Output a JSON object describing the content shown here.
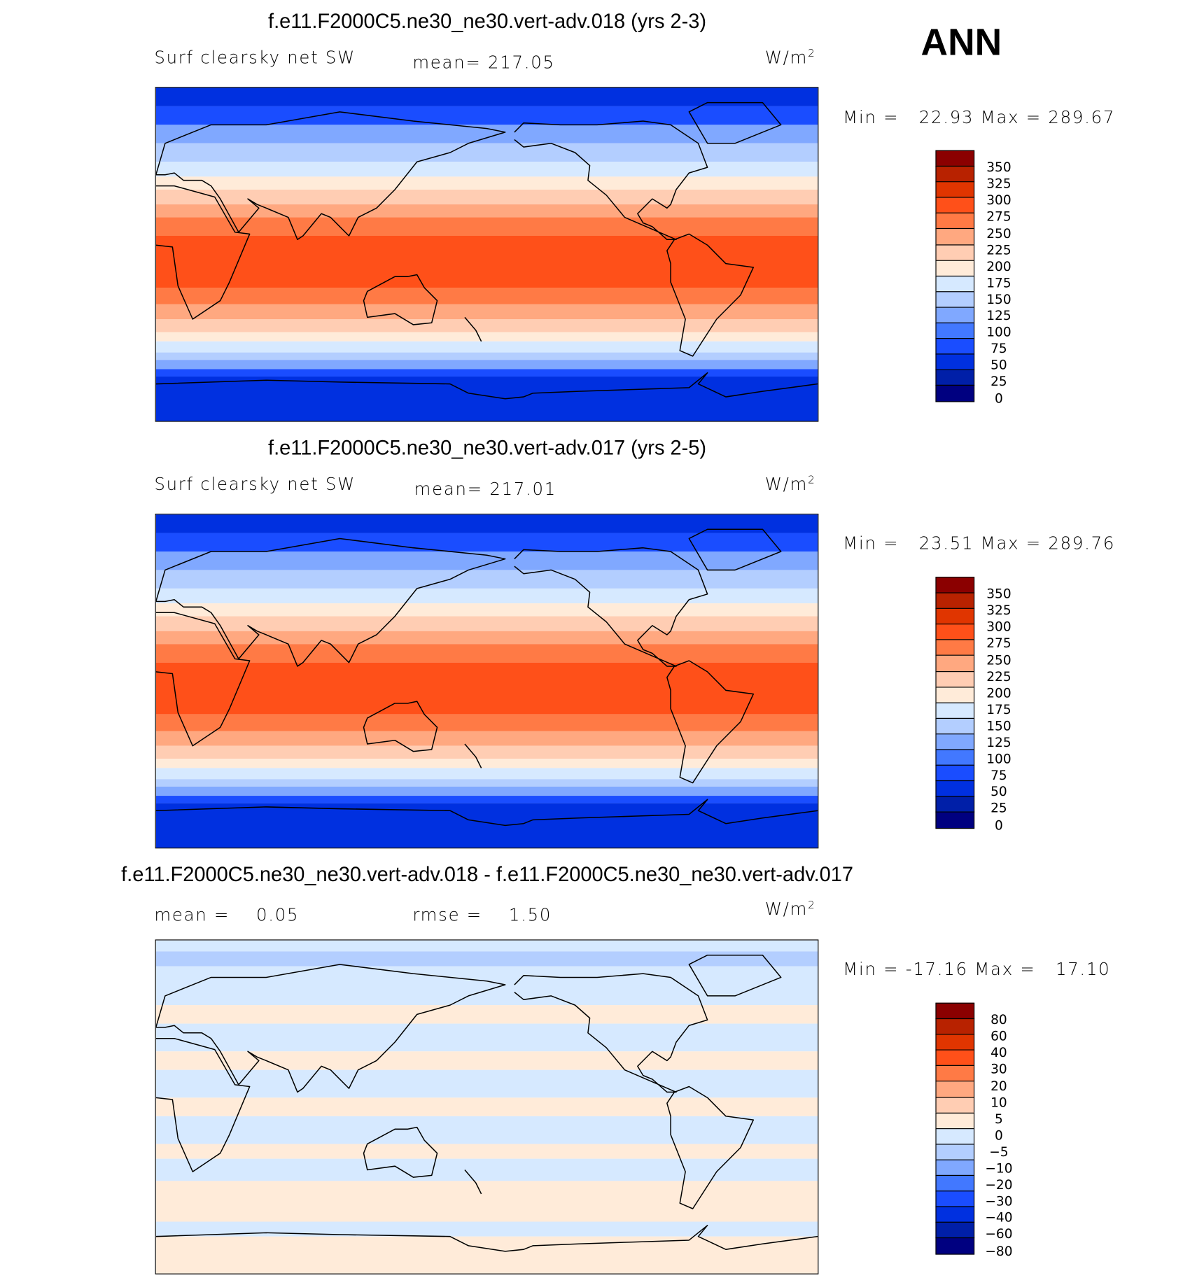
{
  "season_label": "ANN",
  "units_text": "W/m",
  "units_sup": "2",
  "colors": [
    "#000080",
    "#001fa8",
    "#0030e0",
    "#1a4dff",
    "#4278ff",
    "#80a8ff",
    "#b3ceff",
    "#d6e9ff",
    "#ffebd9",
    "#ffcdb3",
    "#ffa880",
    "#ff7a45",
    "#ff5019",
    "#e03500",
    "#b82200",
    "#8b0000"
  ],
  "coast_color": "#000000",
  "panels": [
    {
      "title": "f.e11.F2000C5.ne30_ne30.vert-adv.018 (yrs 2-3)",
      "left_label": "Surf clearsky net SW",
      "mid_label": "mean= 217.05",
      "min_label": "Min =",
      "min_value": "22.93",
      "max_label": "Max =",
      "max_value": "289.67"
    },
    {
      "title": "f.e11.F2000C5.ne30_ne30.vert-adv.017 (yrs 2-5)",
      "left_label": "Surf clearsky net SW",
      "mid_label": "mean= 217.01",
      "min_label": "Min =",
      "min_value": "23.51",
      "max_label": "Max =",
      "max_value": "289.76"
    },
    {
      "title": "f.e11.F2000C5.ne30_ne30.vert-adv.018 - f.e11.F2000C5.ne30_ne30.vert-adv.017",
      "left_label": "mean =    0.05",
      "mid_label": "rmse =    1.50",
      "min_label": "Min =",
      "min_value": "-17.16",
      "max_label": "Max =",
      "max_value": "17.10"
    }
  ],
  "chart_data": [
    {
      "type": "heatmap",
      "title": "f.e11.F2000C5.ne30_ne30.vert-adv.018 (yrs 2-3)",
      "variable": "Surf clearsky net SW",
      "units": "W/m2",
      "levels": [
        0,
        25,
        50,
        75,
        100,
        125,
        150,
        175,
        200,
        225,
        250,
        275,
        300,
        325,
        350
      ],
      "level_labels": [
        "350",
        "325",
        "300",
        "275",
        "250",
        "225",
        "200",
        "175",
        "150",
        "125",
        "100",
        "75",
        "50",
        "25",
        "0"
      ],
      "zonal_bands": [
        {
          "lat": [
            90,
            80
          ],
          "value": 40
        },
        {
          "lat": [
            80,
            70
          ],
          "value": 60
        },
        {
          "lat": [
            70,
            60
          ],
          "value": 110
        },
        {
          "lat": [
            60,
            50
          ],
          "value": 140
        },
        {
          "lat": [
            50,
            42
          ],
          "value": 165
        },
        {
          "lat": [
            42,
            35
          ],
          "value": 190
        },
        {
          "lat": [
            35,
            27
          ],
          "value": 215
        },
        {
          "lat": [
            27,
            20
          ],
          "value": 240
        },
        {
          "lat": [
            20,
            10
          ],
          "value": 262
        },
        {
          "lat": [
            10,
            -18
          ],
          "value": 282
        },
        {
          "lat": [
            -18,
            -27
          ],
          "value": 262
        },
        {
          "lat": [
            -27,
            -35
          ],
          "value": 240
        },
        {
          "lat": [
            -35,
            -42
          ],
          "value": 215
        },
        {
          "lat": [
            -42,
            -47
          ],
          "value": 190
        },
        {
          "lat": [
            -47,
            -53
          ],
          "value": 165
        },
        {
          "lat": [
            -53,
            -57
          ],
          "value": 140
        },
        {
          "lat": [
            -57,
            -62
          ],
          "value": 110
        },
        {
          "lat": [
            -62,
            -66
          ],
          "value": 70
        },
        {
          "lat": [
            -66,
            -90
          ],
          "value": 40
        }
      ],
      "lon_range": [
        0,
        360
      ],
      "lat_range": [
        -90,
        90
      ]
    },
    {
      "type": "heatmap",
      "title": "f.e11.F2000C5.ne30_ne30.vert-adv.017 (yrs 2-5)",
      "variable": "Surf clearsky net SW",
      "units": "W/m2",
      "levels": [
        0,
        25,
        50,
        75,
        100,
        125,
        150,
        175,
        200,
        225,
        250,
        275,
        300,
        325,
        350
      ],
      "level_labels": [
        "350",
        "325",
        "300",
        "275",
        "250",
        "225",
        "200",
        "175",
        "150",
        "125",
        "100",
        "75",
        "50",
        "25",
        "0"
      ],
      "zonal_bands": [
        {
          "lat": [
            90,
            80
          ],
          "value": 40
        },
        {
          "lat": [
            80,
            70
          ],
          "value": 60
        },
        {
          "lat": [
            70,
            60
          ],
          "value": 110
        },
        {
          "lat": [
            60,
            50
          ],
          "value": 140
        },
        {
          "lat": [
            50,
            42
          ],
          "value": 165
        },
        {
          "lat": [
            42,
            35
          ],
          "value": 190
        },
        {
          "lat": [
            35,
            27
          ],
          "value": 215
        },
        {
          "lat": [
            27,
            20
          ],
          "value": 240
        },
        {
          "lat": [
            20,
            10
          ],
          "value": 262
        },
        {
          "lat": [
            10,
            -18
          ],
          "value": 282
        },
        {
          "lat": [
            -18,
            -27
          ],
          "value": 262
        },
        {
          "lat": [
            -27,
            -35
          ],
          "value": 240
        },
        {
          "lat": [
            -35,
            -42
          ],
          "value": 215
        },
        {
          "lat": [
            -42,
            -47
          ],
          "value": 190
        },
        {
          "lat": [
            -47,
            -53
          ],
          "value": 165
        },
        {
          "lat": [
            -53,
            -57
          ],
          "value": 140
        },
        {
          "lat": [
            -57,
            -62
          ],
          "value": 110
        },
        {
          "lat": [
            -62,
            -66
          ],
          "value": 70
        },
        {
          "lat": [
            -66,
            -90
          ],
          "value": 40
        }
      ],
      "lon_range": [
        0,
        360
      ],
      "lat_range": [
        -90,
        90
      ]
    },
    {
      "type": "heatmap",
      "title": "f.e11.F2000C5.ne30_ne30.vert-adv.018 - f.e11.F2000C5.ne30_ne30.vert-adv.017",
      "units": "W/m2",
      "levels": [
        -80,
        -60,
        -40,
        -30,
        -20,
        -10,
        -5,
        0,
        5,
        10,
        20,
        30,
        40,
        60,
        80
      ],
      "level_labels": [
        "80",
        "60",
        "40",
        "30",
        "20",
        "10",
        "5",
        "0",
        "−5",
        "−10",
        "−20",
        "−30",
        "−40",
        "−60",
        "−80"
      ],
      "zonal_bands": [
        {
          "lat": [
            90,
            84
          ],
          "value": -3
        },
        {
          "lat": [
            84,
            76
          ],
          "value": -7
        },
        {
          "lat": [
            76,
            55
          ],
          "value": -2
        },
        {
          "lat": [
            55,
            45
          ],
          "value": 2
        },
        {
          "lat": [
            45,
            30
          ],
          "value": -2
        },
        {
          "lat": [
            30,
            20
          ],
          "value": 2
        },
        {
          "lat": [
            20,
            5
          ],
          "value": -2
        },
        {
          "lat": [
            5,
            -5
          ],
          "value": 2
        },
        {
          "lat": [
            -5,
            -20
          ],
          "value": -2
        },
        {
          "lat": [
            -20,
            -28
          ],
          "value": 2
        },
        {
          "lat": [
            -28,
            -40
          ],
          "value": -2
        },
        {
          "lat": [
            -40,
            -62
          ],
          "value": 2
        },
        {
          "lat": [
            -62,
            -70
          ],
          "value": -2
        },
        {
          "lat": [
            -70,
            -90
          ],
          "value": 2
        }
      ],
      "lon_range": [
        0,
        360
      ],
      "lat_range": [
        -90,
        90
      ]
    }
  ]
}
